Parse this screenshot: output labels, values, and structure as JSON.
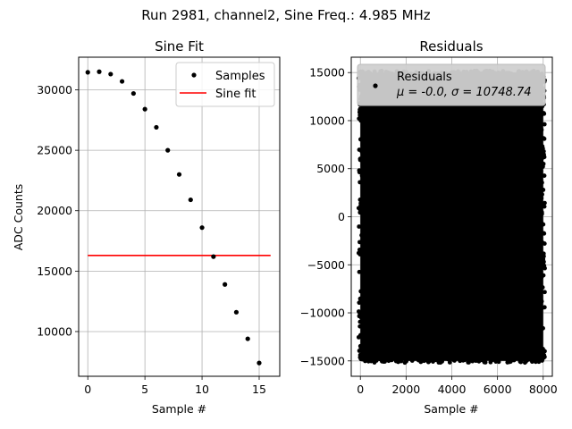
{
  "suptitle": "Run 2981, channel2, Sine Freq.: 4.985 MHz",
  "chart_data": [
    {
      "type": "scatter+line",
      "title": "Sine Fit",
      "xlabel": "Sample #",
      "ylabel": "ADC Counts",
      "xlim": [
        -0.8,
        16.8
      ],
      "ylim": [
        6300,
        32700
      ],
      "grid": true,
      "xticks": [
        0,
        5,
        10,
        15
      ],
      "yticks": [
        10000,
        15000,
        20000,
        25000,
        30000
      ],
      "xtick_labels": [
        "0",
        "5",
        "10",
        "15"
      ],
      "ytick_labels": [
        "10000",
        "15000",
        "20000",
        "25000",
        "30000"
      ],
      "legend_position": "upper right",
      "legend": [
        {
          "label": "Samples",
          "marker": "dot",
          "color": "#000000"
        },
        {
          "label": "Sine fit",
          "marker": "line",
          "color": "#ff0000"
        }
      ],
      "series": [
        {
          "name": "Samples",
          "x": [
            0,
            1,
            2,
            3,
            4,
            5,
            6,
            7,
            8,
            9,
            10,
            11,
            12,
            13,
            14,
            15
          ],
          "y": [
            31450,
            31500,
            31300,
            30700,
            29700,
            28400,
            26900,
            25000,
            23000,
            20900,
            18600,
            16200,
            13900,
            11600,
            9400,
            7400
          ]
        },
        {
          "name": "Sine fit",
          "x": [
            0,
            16
          ],
          "y": [
            16300,
            16300
          ]
        }
      ]
    },
    {
      "type": "scatter",
      "title": "Residuals",
      "xlabel": "Sample #",
      "ylabel": "",
      "xlim": [
        -400,
        8400
      ],
      "ylim": [
        -16600,
        16600
      ],
      "grid": true,
      "xticks": [
        0,
        2000,
        4000,
        6000,
        8000
      ],
      "yticks": [
        -15000,
        -10000,
        -5000,
        0,
        5000,
        10000,
        15000
      ],
      "xtick_labels": [
        "0",
        "2000",
        "4000",
        "6000",
        "8000"
      ],
      "ytick_labels": [
        "−15000",
        "−10000",
        "−5000",
        "0",
        "5000",
        "10000",
        "15000"
      ],
      "legend_position": "upper left",
      "legend": [
        {
          "label": "Residuals",
          "marker": "dot",
          "color": "#000000"
        },
        {
          "label": "μ = -0.0, σ = 10748.74",
          "marker": "none",
          "color": "#000000"
        }
      ],
      "series": [
        {
          "name": "Residuals",
          "x_range": [
            0,
            8000
          ],
          "y_range": [
            -15000,
            15000
          ],
          "mean": -0.0,
          "std": 10748.74,
          "count": 8000
        }
      ]
    }
  ]
}
